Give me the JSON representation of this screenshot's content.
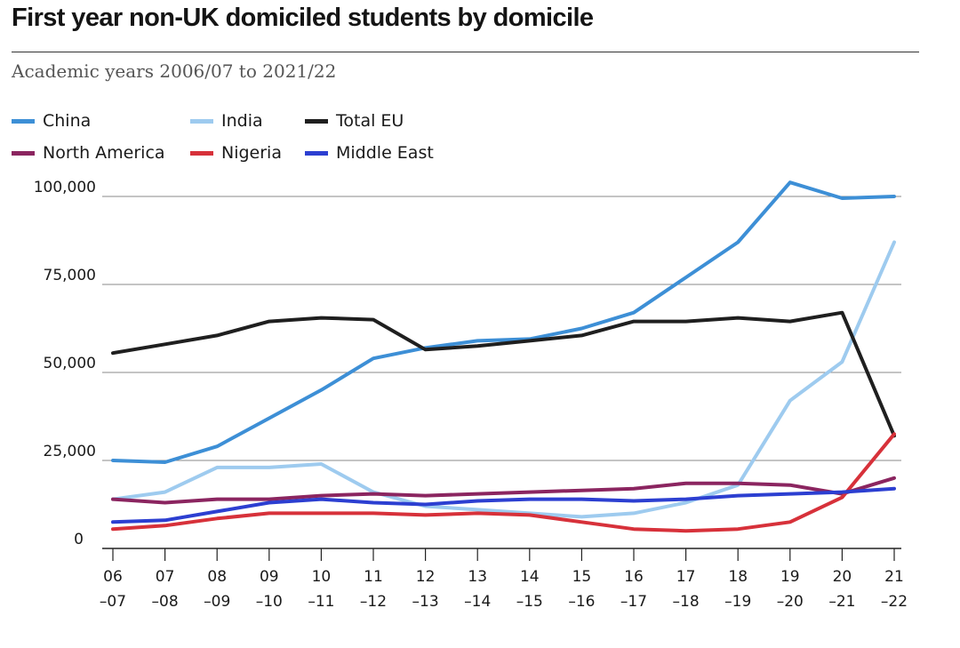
{
  "title": "First year non-UK domiciled students by domicile",
  "subtitle": "Academic years 2006/07 to 2021/22",
  "chart_data": {
    "type": "line",
    "title": "First year non-UK domiciled students by domicile",
    "subtitle": "Academic years 2006/07 to 2021/22",
    "xlabel": "",
    "ylabel": "",
    "x_tick_labels": [
      [
        "06",
        "–07"
      ],
      [
        "07",
        "–08"
      ],
      [
        "08",
        "–09"
      ],
      [
        "09",
        "–10"
      ],
      [
        "10",
        "–11"
      ],
      [
        "11",
        "–12"
      ],
      [
        "12",
        "–13"
      ],
      [
        "13",
        "–14"
      ],
      [
        "14",
        "–15"
      ],
      [
        "15",
        "–16"
      ],
      [
        "16",
        "–17"
      ],
      [
        "17",
        "–18"
      ],
      [
        "18",
        "–19"
      ],
      [
        "19",
        "–20"
      ],
      [
        "20",
        "–21"
      ],
      [
        "21",
        "–22"
      ]
    ],
    "y_ticks": [
      0,
      25000,
      50000,
      75000,
      100000
    ],
    "y_tick_labels": [
      "0",
      "25,000",
      "50,000",
      "75,000",
      "100,000"
    ],
    "ylim": [
      0,
      100000
    ],
    "grid": true,
    "legend_position": "top-left",
    "series": [
      {
        "name": "China",
        "color": "#3d8fd6",
        "values": [
          25000,
          24500,
          29000,
          37000,
          45000,
          54000,
          57000,
          59000,
          59500,
          62500,
          67000,
          77000,
          87000,
          104000,
          99500,
          100000
        ]
      },
      {
        "name": "India",
        "color": "#9ecbef",
        "values": [
          14000,
          16000,
          23000,
          23000,
          24000,
          16000,
          12000,
          11000,
          10000,
          9000,
          10000,
          13000,
          18000,
          42000,
          53000,
          87000
        ]
      },
      {
        "name": "Total EU",
        "color": "#1f1f1f",
        "values": [
          55500,
          58000,
          60500,
          64500,
          65500,
          65000,
          56500,
          57500,
          59000,
          60500,
          64500,
          64500,
          65500,
          64500,
          67000,
          32000
        ]
      },
      {
        "name": "North America",
        "color": "#8b2560",
        "values": [
          14000,
          13000,
          14000,
          14000,
          15000,
          15500,
          15000,
          15500,
          16000,
          16500,
          17000,
          18500,
          18500,
          18000,
          15500,
          20000
        ]
      },
      {
        "name": "Nigeria",
        "color": "#d7313a",
        "values": [
          5500,
          6500,
          8500,
          10000,
          10000,
          10000,
          9500,
          10000,
          9500,
          7500,
          5500,
          5000,
          5500,
          7500,
          14500,
          32500
        ]
      },
      {
        "name": "Middle East",
        "color": "#2c3fd1",
        "values": [
          7500,
          8000,
          10500,
          13000,
          14000,
          13000,
          12500,
          13500,
          14000,
          14000,
          13500,
          14000,
          15000,
          15500,
          16000,
          17000
        ]
      }
    ]
  }
}
